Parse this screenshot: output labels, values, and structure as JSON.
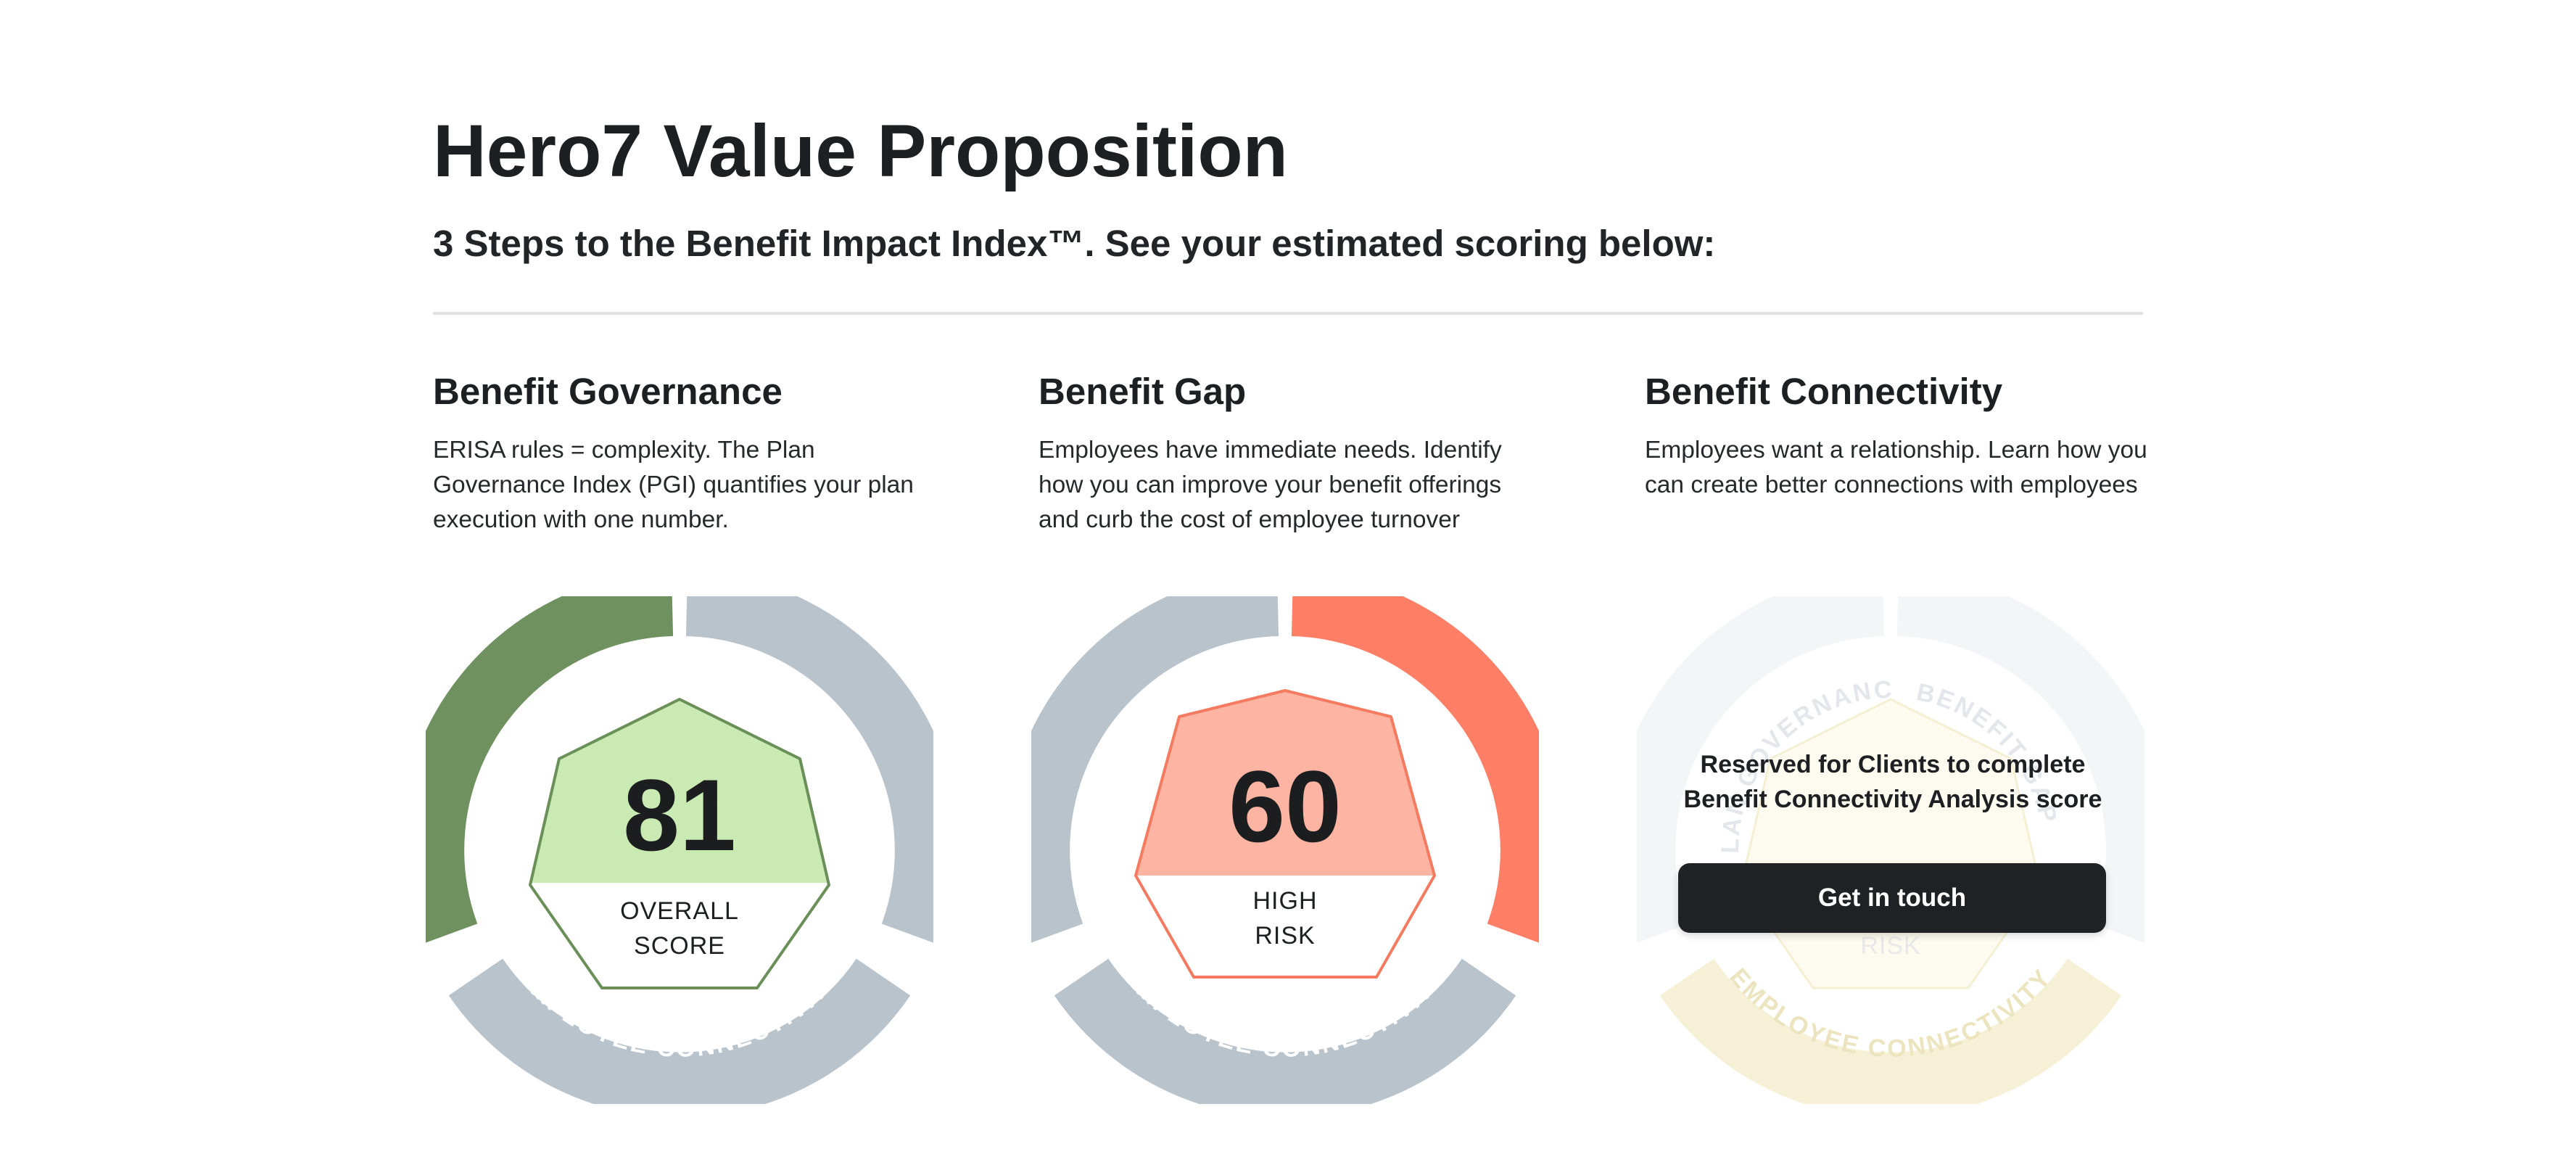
{
  "header": {
    "title": "Hero7 Value Proposition",
    "subtitle": "3 Steps to the Benefit Impact Index™. See your estimated scoring below:"
  },
  "columns": [
    {
      "heading": "Benefit Governance",
      "description": "ERISA rules = complexity. The Plan Governance Index (PGI) quantifies your plan execution with one number."
    },
    {
      "heading": "Benefit Gap",
      "description": "Employees have immediate needs. Identify how you can improve your benefit offerings and curb the cost of employee turnover"
    },
    {
      "heading": "Benefit Connectivity",
      "description": "Employees want a relationship. Learn how you can create better connections with employees"
    }
  ],
  "gauges": [
    {
      "score": "81",
      "label_line1": "OVERALL",
      "label_line2": "SCORE",
      "active_segment": "PLAN GOVERNANCE",
      "active_color": "#6f9160",
      "fill_color": "#c9eab2",
      "outline_color": "#6a8f58"
    },
    {
      "score": "60",
      "label_line1": "HIGH",
      "label_line2": "RISK",
      "active_segment": "BENEFIT GAP",
      "active_color": "#ff7f66",
      "fill_color": "#fdb4a3",
      "outline_color": "#f47a60"
    },
    {
      "label_line2": "RISK",
      "active_segment": "EMPLOYEE CONNECTIVITY",
      "active_color": "#f6f0d6"
    }
  ],
  "segments": {
    "left": "PLAN GOVERNANCE",
    "right": "BENEFIT GAP",
    "bottom": "EMPLOYEE CONNECTIVITY"
  },
  "colors": {
    "inactive_segment": "#b8c3cc",
    "faded_segment": "#f3f5f7"
  },
  "reserved": {
    "line1": "Reserved for Clients to complete",
    "line2": "Benefit Connectivity Analysis score"
  },
  "cta": {
    "label": "Get in touch"
  }
}
